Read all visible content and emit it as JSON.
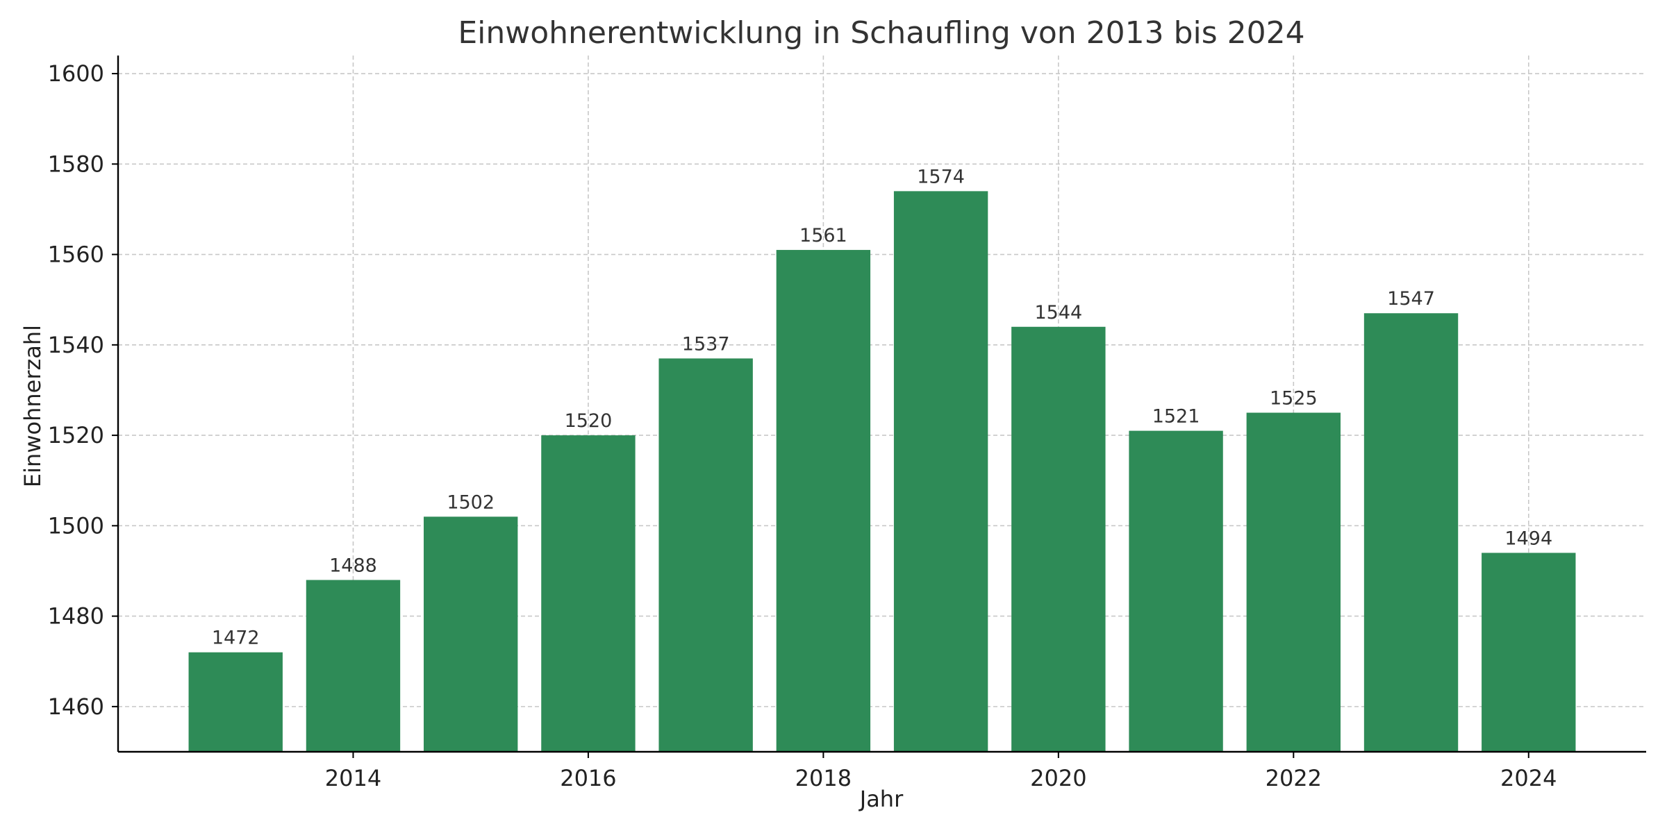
{
  "chart_data": {
    "type": "bar",
    "title": "Einwohnerentwicklung in Schaufling von 2013 bis 2024",
    "xlabel": "Jahr",
    "ylabel": "Einwohnerzahl",
    "categories": [
      2013,
      2014,
      2015,
      2016,
      2017,
      2018,
      2019,
      2020,
      2021,
      2022,
      2023,
      2024
    ],
    "values": [
      1472,
      1488,
      1502,
      1520,
      1537,
      1561,
      1574,
      1544,
      1521,
      1525,
      1547,
      1494
    ],
    "ylim": [
      1450,
      1604
    ],
    "xlim": [
      2012.0,
      2025.0
    ],
    "yticks": [
      1460,
      1480,
      1500,
      1520,
      1540,
      1560,
      1580,
      1600
    ],
    "xticks": [
      2014,
      2016,
      2018,
      2020,
      2022,
      2024
    ],
    "bar_color": "#2e8b57",
    "grid": true,
    "data_labels": true
  }
}
